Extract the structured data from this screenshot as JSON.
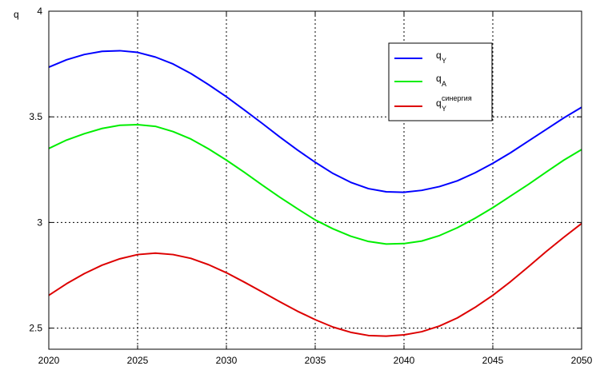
{
  "chart_data": {
    "type": "line",
    "ylabel": "q",
    "xlim": [
      2020,
      2050
    ],
    "ylim": [
      2.4,
      4.0
    ],
    "xticks": [
      2020,
      2025,
      2030,
      2035,
      2040,
      2045,
      2050
    ],
    "yticks": [
      2.5,
      3,
      3.5,
      4
    ],
    "ytick_labels": [
      "2.5",
      "3",
      "3.5",
      "4"
    ],
    "grid": true,
    "legend_position": "top-right",
    "x": [
      2020,
      2021,
      2022,
      2023,
      2024,
      2025,
      2026,
      2027,
      2028,
      2029,
      2030,
      2031,
      2032,
      2033,
      2034,
      2035,
      2036,
      2037,
      2038,
      2039,
      2040,
      2041,
      2042,
      2043,
      2044,
      2045,
      2046,
      2047,
      2048,
      2049,
      2050
    ],
    "series": [
      {
        "base": "q",
        "sub": "Y",
        "sup": "",
        "color": "#0000ff",
        "values": [
          3.735,
          3.77,
          3.795,
          3.81,
          3.813,
          3.805,
          3.783,
          3.75,
          3.705,
          3.652,
          3.595,
          3.533,
          3.47,
          3.405,
          3.343,
          3.285,
          3.232,
          3.19,
          3.16,
          3.145,
          3.143,
          3.152,
          3.17,
          3.197,
          3.235,
          3.28,
          3.33,
          3.385,
          3.44,
          3.495,
          3.545
        ]
      },
      {
        "base": "q",
        "sub": "A",
        "sup": "",
        "color": "#00ee00",
        "values": [
          3.35,
          3.39,
          3.42,
          3.445,
          3.46,
          3.463,
          3.455,
          3.43,
          3.395,
          3.348,
          3.295,
          3.238,
          3.178,
          3.12,
          3.065,
          3.012,
          2.97,
          2.935,
          2.91,
          2.898,
          2.9,
          2.912,
          2.938,
          2.975,
          3.02,
          3.07,
          3.125,
          3.18,
          3.238,
          3.295,
          3.345
        ]
      },
      {
        "base": "q",
        "sub": "Y",
        "sup": "синергия",
        "color": "#dd0000",
        "values": [
          2.655,
          2.71,
          2.758,
          2.798,
          2.828,
          2.848,
          2.855,
          2.848,
          2.83,
          2.8,
          2.762,
          2.718,
          2.672,
          2.625,
          2.58,
          2.54,
          2.505,
          2.48,
          2.465,
          2.462,
          2.468,
          2.483,
          2.51,
          2.548,
          2.598,
          2.655,
          2.72,
          2.79,
          2.862,
          2.93,
          2.995
        ]
      }
    ]
  }
}
